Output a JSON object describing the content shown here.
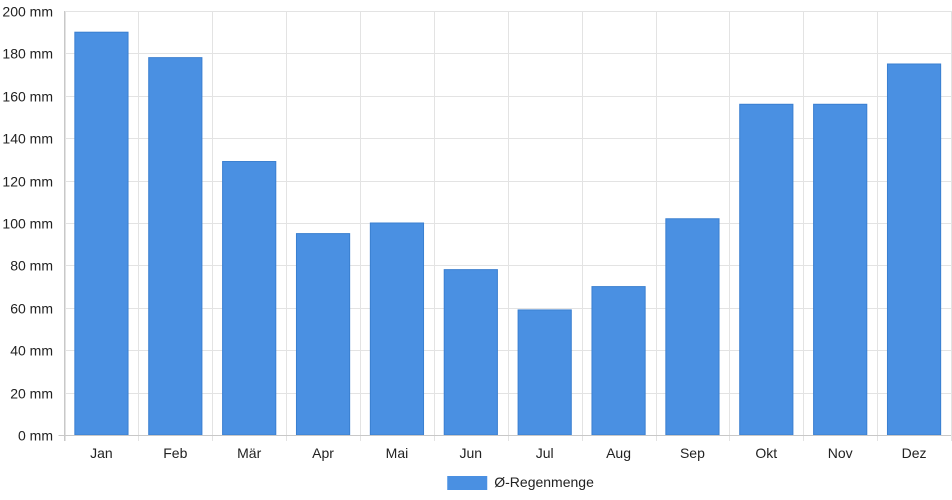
{
  "chart_data": {
    "type": "bar",
    "categories": [
      "Jan",
      "Feb",
      "Mär",
      "Apr",
      "Mai",
      "Jun",
      "Jul",
      "Aug",
      "Sep",
      "Okt",
      "Nov",
      "Dez"
    ],
    "series": [
      {
        "name": "Ø-Regenmenge",
        "values": [
          190,
          178,
          129,
          95,
          100,
          78,
          59,
          70,
          102,
          156,
          156,
          175
        ],
        "color": "#4a90e2"
      }
    ],
    "ylim": [
      0,
      200
    ],
    "yticks": [
      0,
      20,
      40,
      60,
      80,
      100,
      120,
      140,
      160,
      180,
      200
    ],
    "y_unit": "mm",
    "grid": true,
    "legend_position": "bottom-center"
  }
}
